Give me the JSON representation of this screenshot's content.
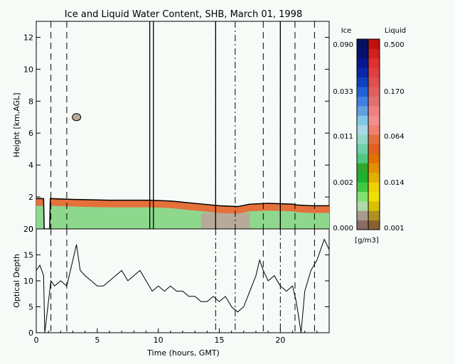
{
  "chart_data": [
    {
      "type": "heatmap",
      "title": "Ice and Liquid Water Content, SHB, March 01, 1998",
      "xlabel": "",
      "ylabel": "Height [km,AGL]",
      "xlim": [
        0,
        24
      ],
      "ylim": [
        0,
        13
      ],
      "yticks": [
        0,
        2,
        4,
        6,
        8,
        10,
        12
      ],
      "cloud_top_km": [
        [
          0.0,
          1.9
        ],
        [
          0.6,
          1.9
        ],
        [
          0.65,
          0.0
        ],
        [
          1.1,
          0.0
        ],
        [
          1.15,
          1.9
        ],
        [
          3.0,
          1.85
        ],
        [
          6.0,
          1.8
        ],
        [
          9.3,
          1.8
        ],
        [
          11.0,
          1.75
        ],
        [
          13.0,
          1.6
        ],
        [
          15.0,
          1.45
        ],
        [
          16.5,
          1.4
        ],
        [
          17.5,
          1.55
        ],
        [
          19.0,
          1.6
        ],
        [
          21.0,
          1.55
        ],
        [
          21.3,
          1.5
        ],
        [
          22.5,
          1.45
        ],
        [
          24.0,
          1.45
        ]
      ],
      "ice_patch": {
        "time": 3.3,
        "height_km": 7.0
      },
      "vertical_lines": {
        "solid": [
          9.3,
          9.6,
          14.7,
          20.0
        ],
        "dashed": [
          1.2,
          2.5,
          18.6,
          21.2,
          22.8
        ],
        "dash_dot": [
          14.7,
          16.3,
          20.0
        ]
      }
    },
    {
      "type": "line",
      "xlabel": "Time (hours, GMT)",
      "ylabel": "Optical Depth",
      "xlim": [
        0,
        24
      ],
      "ylim": [
        0,
        20
      ],
      "xticks": [
        0,
        5,
        10,
        15,
        20
      ],
      "yticks": [
        0,
        5,
        10,
        15,
        20
      ],
      "x": [
        0.0,
        0.3,
        0.6,
        0.7,
        1.2,
        1.5,
        2.0,
        2.5,
        3.0,
        3.3,
        3.6,
        4.0,
        4.5,
        5.0,
        5.5,
        6.0,
        6.5,
        7.0,
        7.5,
        8.0,
        8.5,
        9.0,
        9.5,
        10.0,
        10.5,
        11.0,
        11.5,
        12.0,
        12.5,
        13.0,
        13.5,
        14.0,
        14.5,
        15.0,
        15.5,
        16.0,
        16.5,
        17.0,
        17.5,
        18.0,
        18.3,
        18.6,
        19.0,
        19.5,
        20.0,
        20.5,
        21.0,
        21.3,
        21.7,
        22.0,
        22.5,
        23.0,
        23.3,
        23.6,
        24.0
      ],
      "y": [
        12,
        13,
        11,
        0,
        10,
        9,
        10,
        9,
        14,
        17,
        12,
        11,
        10,
        9,
        9,
        10,
        11,
        12,
        10,
        11,
        12,
        10,
        8,
        9,
        8,
        9,
        8,
        8,
        7,
        7,
        6,
        6,
        7,
        6,
        7,
        5,
        4,
        5,
        8,
        11,
        14,
        12,
        10,
        11,
        9,
        8,
        9,
        6,
        0,
        8,
        12,
        14,
        16,
        18,
        16
      ],
      "vertical_lines": {
        "solid": [],
        "dashed": [
          1.2,
          2.5,
          18.6,
          21.2,
          22.8
        ],
        "dash_dot": [
          14.7,
          16.3,
          20.0
        ]
      }
    }
  ],
  "legend": {
    "ice_label": "Ice",
    "liquid_label": "Liquid",
    "units": "[g/m3]",
    "ice_ticks": [
      "0.090",
      "0.033",
      "0.011",
      "0.002",
      "0.000"
    ],
    "liquid_ticks": [
      "0.500",
      "0.170",
      "0.064",
      "0.014",
      "0.001"
    ],
    "ice_colors": [
      "#8a6a62",
      "#a89a8e",
      "#b0d8a8",
      "#80e070",
      "#40c840",
      "#20b030",
      "#30a830",
      "#50c880",
      "#70d0a8",
      "#90d8c8",
      "#a8d8e8",
      "#80c8e8",
      "#60a0e0",
      "#4080e0",
      "#2060d8",
      "#1040c0",
      "#0828a8",
      "#081890",
      "#081070",
      "#081060"
    ],
    "liquid_colors": [
      "#8a6030",
      "#b09020",
      "#d8c000",
      "#f0e000",
      "#f0d000",
      "#e0b000",
      "#e09000",
      "#e07000",
      "#e06020",
      "#e07040",
      "#f08070",
      "#f09090",
      "#f08080",
      "#e07070",
      "#e06060",
      "#e05050",
      "#e04040",
      "#e03030",
      "#d02020",
      "#c01010"
    ]
  }
}
